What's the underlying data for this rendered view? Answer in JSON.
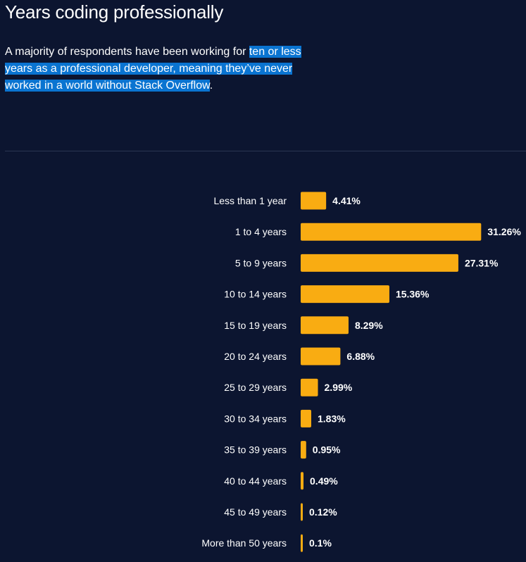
{
  "title": "Years coding professionally",
  "description": {
    "before": "A majority of respondents have been working for ",
    "highlight": "ten or less years as a professional developer, meaning they’ve never worked in a world without Stack Overflow",
    "after": "."
  },
  "colors": {
    "background": "#0c1530",
    "bar": "#f9ac12",
    "highlight": "#0a74d1"
  },
  "chart_data": {
    "type": "bar",
    "orientation": "horizontal",
    "categories": [
      "Less than 1 year",
      "1 to 4 years",
      "5 to 9 years",
      "10 to 14 years",
      "15 to 19 years",
      "20 to 24 years",
      "25 to 29 years",
      "30 to 34 years",
      "35 to 39 years",
      "40 to 44 years",
      "45 to 49 years",
      "More than 50 years"
    ],
    "values": [
      4.41,
      31.26,
      27.31,
      15.36,
      8.29,
      6.88,
      2.99,
      1.83,
      0.95,
      0.49,
      0.12,
      0.1
    ],
    "value_labels": [
      "4.41%",
      "31.26%",
      "27.31%",
      "15.36%",
      "8.29%",
      "6.88%",
      "2.99%",
      "1.83%",
      "0.95%",
      "0.49%",
      "0.12%",
      "0.1%"
    ],
    "grid": false,
    "legend": "none"
  }
}
